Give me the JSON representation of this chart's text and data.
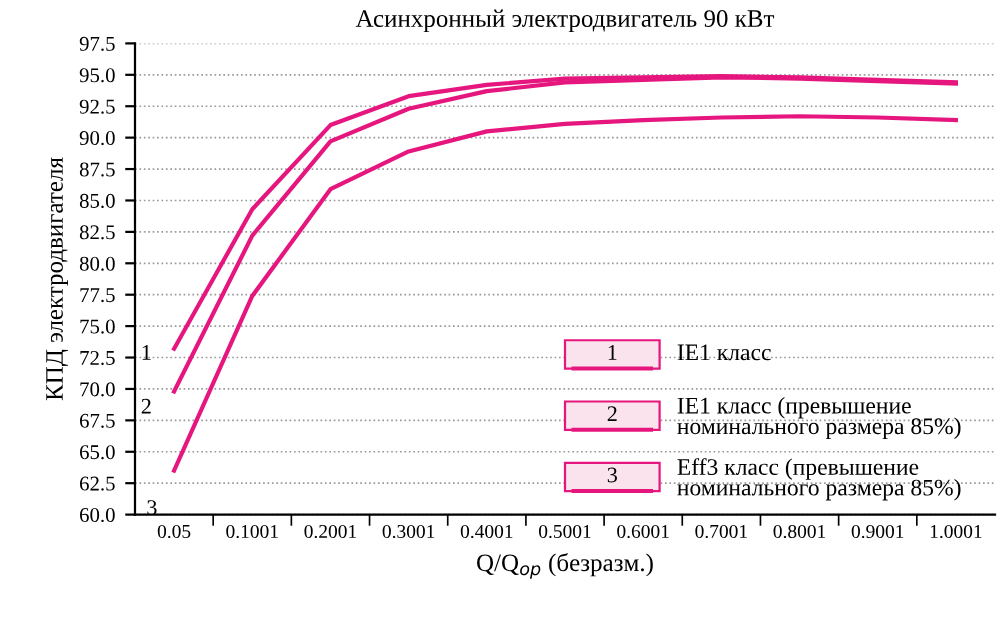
{
  "chart_data": {
    "type": "line",
    "title": "Асинхронный электродвигатель 90 кВт",
    "xlabel": "Q/Q$_{ор}$ (безразм.)",
    "ylabel": "КПД электродвигателя",
    "categories": [
      "0.05",
      "0.1001",
      "0.2001",
      "0.3001",
      "0.4001",
      "0.5001",
      "0.6001",
      "0.7001",
      "0.8001",
      "0.9001",
      "1.0001"
    ],
    "ylim": [
      60.0,
      97.5
    ],
    "yticks": [
      {
        "value": 60,
        "label": "60.0"
      },
      {
        "value": 62.5,
        "label": "62.5"
      },
      {
        "value": 65,
        "label": "65.0"
      },
      {
        "value": 67.5,
        "label": "67.5"
      },
      {
        "value": 70,
        "label": "70.0"
      },
      {
        "value": 72.5,
        "label": "72.5"
      },
      {
        "value": 75,
        "label": "75.0"
      },
      {
        "value": 77.5,
        "label": "77.5"
      },
      {
        "value": 80,
        "label": "80.0"
      },
      {
        "value": 82.5,
        "label": "82.5"
      },
      {
        "value": 85,
        "label": "85.0"
      },
      {
        "value": 87.5,
        "label": "87.5"
      },
      {
        "value": 90,
        "label": "90.0"
      },
      {
        "value": 92.5,
        "label": "92.5"
      },
      {
        "value": 95,
        "label": "95.0"
      },
      {
        "value": 97.5,
        "label": "97.5"
      }
    ],
    "grid": "y",
    "legend": "bottom right",
    "marker": "none",
    "line_style": "solid",
    "series": [
      {
        "name": "IE1 класс",
        "color": "#e6167f",
        "values": [
          73.2,
          84.3,
          91.0,
          93.3,
          94.2,
          94.7,
          94.8,
          94.9,
          94.8,
          94.6,
          94.4
        ]
      },
      {
        "name": "IE1 класс (превышение номинального размера 85%)",
        "color": "#e6167f",
        "values": [
          69.8,
          82.2,
          89.7,
          92.3,
          93.7,
          94.4,
          94.6,
          94.8,
          94.7,
          94.5,
          94.3
        ]
      },
      {
        "name": "Eff3 класс (превышение номинального размера 85%)",
        "color": "#e6167f",
        "values": [
          63.5,
          77.4,
          85.9,
          88.9,
          90.5,
          91.1,
          91.4,
          91.6,
          91.7,
          91.6,
          91.4
        ]
      }
    ],
    "annotations": [
      {
        "text": "1",
        "x": "0.05",
        "y": 73.2
      },
      {
        "text": "2",
        "x": "0.05",
        "y": 69.8
      },
      {
        "text": "3",
        "x": "0.05",
        "y": 63.5
      }
    ]
  }
}
